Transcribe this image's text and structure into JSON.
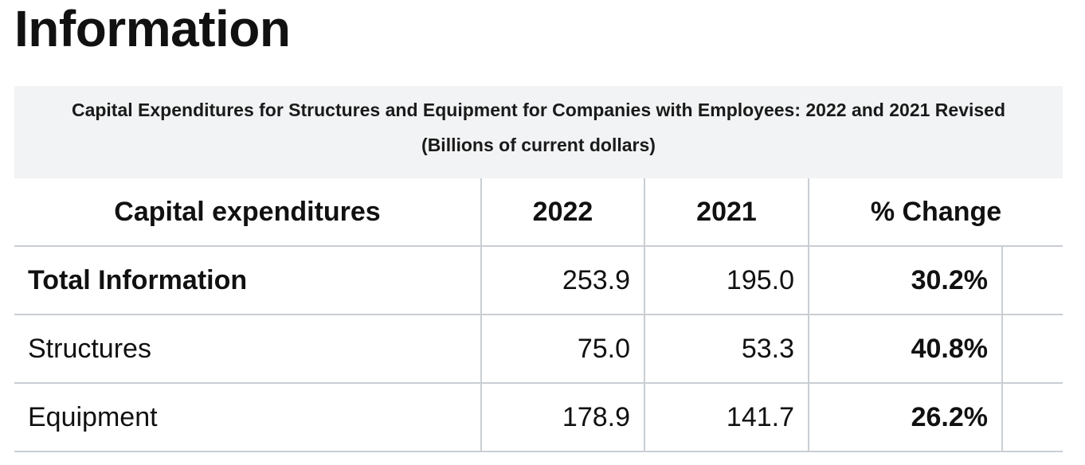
{
  "page": {
    "title": "Information"
  },
  "table": {
    "caption_line1": "Capital Expenditures for Structures and Equipment for Companies with Employees: 2022 and 2021 Revised",
    "caption_line2": "(Billions of current dollars)",
    "headers": [
      "Capital expenditures",
      "2022",
      "2021",
      "% Change"
    ],
    "rows": [
      {
        "label": "Total Information",
        "y2022": "253.9",
        "y2021": "195.0",
        "change": "30.2%"
      },
      {
        "label": "Structures",
        "y2022": "75.0",
        "y2021": "53.3",
        "change": "40.8%"
      },
      {
        "label": "Equipment",
        "y2022": "178.9",
        "y2021": "141.7",
        "change": "26.2%"
      }
    ]
  }
}
